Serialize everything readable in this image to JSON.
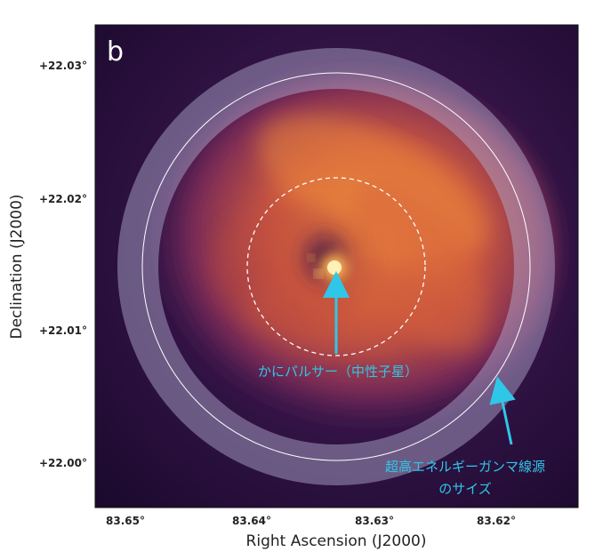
{
  "panel_letter": "b",
  "x_axis": {
    "label": "Right Ascension (J2000)",
    "ticks": [
      "83.65°",
      "83.64°",
      "83.63°",
      "83.62°"
    ]
  },
  "y_axis": {
    "label": "Declination (J2000)",
    "ticks": [
      "+22.03°",
      "+22.02°",
      "+22.01°",
      "+22.00°"
    ]
  },
  "annotations": {
    "pulsar": "かにパルサー（中性子星）",
    "gamma_source_line1": "超高エネルギーガンマ線源",
    "gamma_source_line2": "のサイズ"
  },
  "colors": {
    "annotation": "#2fc7e8",
    "background_dark": "#2a0f3a",
    "nebula_bright": "#f6b040",
    "ring_overlay": "#b7b3d6"
  }
}
